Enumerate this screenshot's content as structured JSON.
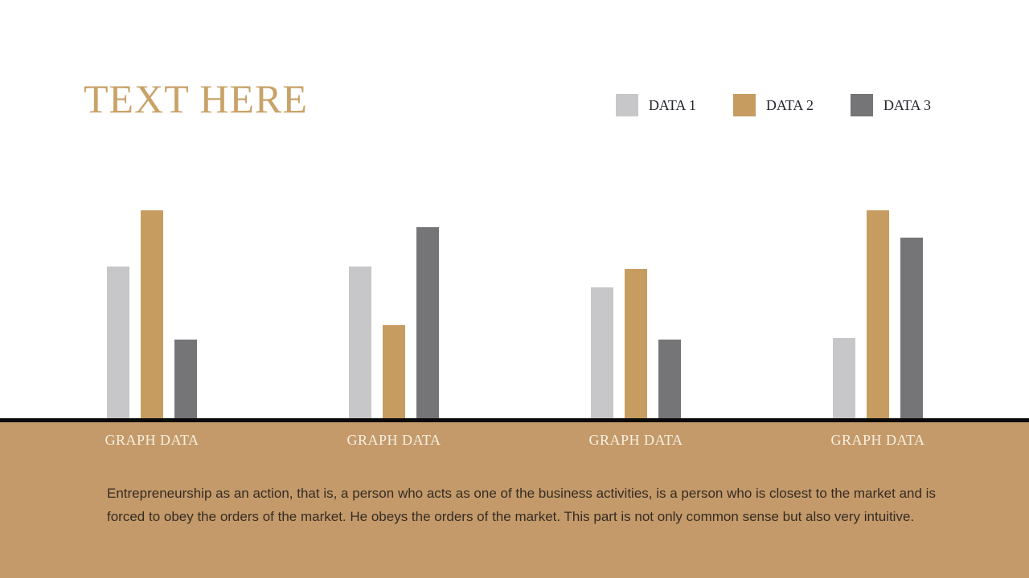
{
  "header": {
    "title": "TEXT HERE"
  },
  "chart_data": {
    "type": "bar",
    "title": "",
    "xlabel": "",
    "ylabel": "",
    "categories": [
      "GRAPH DATA",
      "GRAPH DATA",
      "GRAPH DATA",
      "GRAPH DATA"
    ],
    "series": [
      {
        "name": "DATA 1",
        "color": "#c7c7ca",
        "values": [
          73,
          73,
          63,
          39
        ]
      },
      {
        "name": "DATA 2",
        "color": "#c69c60",
        "values": [
          100,
          45,
          72,
          100
        ]
      },
      {
        "name": "DATA 3",
        "color": "#757578",
        "values": [
          38,
          92,
          38,
          87
        ]
      }
    ],
    "ylim": [
      0,
      100
    ],
    "grid": false,
    "axes_visible": false,
    "legend_position": "top-right",
    "baseline_color": "#0a0a0a"
  },
  "footer": {
    "background_color": "#c49a6b",
    "paragraph": "Entrepreneurship as an action, that is, a person who acts as one of the business activities, is a person who is closest to the market and is forced to obey the orders of the market. He obeys the orders of the market. This part is not only common sense but also very intuitive."
  },
  "colors": {
    "title_gold": "#c9a268",
    "legend_text": "#26252f",
    "category_label_text": "#f7f0e1",
    "paragraph_text": "#352c22"
  }
}
